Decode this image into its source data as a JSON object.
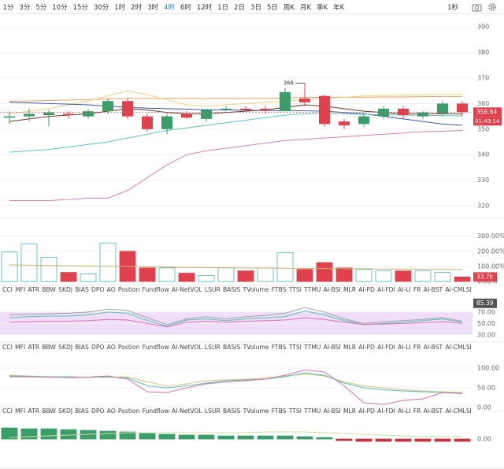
{
  "toolbar": {
    "timeframes": [
      "1分",
      "3分",
      "5分",
      "10分",
      "15分",
      "30分",
      "1时",
      "2时",
      "3时",
      "4时",
      "6时",
      "12时",
      "1日",
      "2日",
      "3日",
      "5日",
      "周K",
      "月K",
      "季K",
      "年K"
    ],
    "active": "4时",
    "right": "1秒"
  },
  "tabs": [
    "CCI",
    "MFI",
    "ATR",
    "BBW",
    "SKDJ",
    "BIAS",
    "DPO",
    "AO",
    "Postion",
    "Fundflow",
    "AI-NetVOL",
    "LSUR",
    "BASIS",
    "TVolume",
    "FTBS",
    "TTSI",
    "TTMU",
    "AI-BSI",
    "MLR",
    "AI-PD",
    "AI-FDI",
    "AI-LI",
    "FR",
    "AI-BST",
    "AI-CMLSI"
  ],
  "chart_data": [
    {
      "type": "candlestick",
      "up_color": "#3a9d6a",
      "down_color": "#e0424d",
      "open": [
        354.5,
        355,
        355.5,
        356,
        355,
        357,
        361,
        355,
        350,
        356,
        354,
        357.5,
        358,
        358,
        357,
        362,
        363,
        353,
        352,
        355,
        358,
        355,
        356,
        360
      ],
      "high": [
        357,
        358,
        357.5,
        357,
        358,
        362,
        362,
        356,
        356,
        357,
        358,
        359,
        359,
        359,
        366,
        368,
        363.5,
        354,
        356,
        359,
        359,
        357,
        361,
        361
      ],
      "low": [
        352,
        353,
        351,
        354,
        354,
        356,
        354,
        349,
        348,
        354,
        353,
        357,
        357,
        356,
        357,
        359,
        351,
        350,
        351,
        354,
        354,
        354,
        355,
        355
      ],
      "close": [
        355,
        356,
        356.5,
        355.5,
        357,
        361,
        355,
        350,
        355,
        354.5,
        357.5,
        358,
        357.5,
        357.5,
        364.5,
        360.5,
        352,
        351.5,
        355,
        358,
        355.5,
        356.5,
        360,
        356.64
      ],
      "high_marker": 368,
      "countdown": "01:49:14",
      "lines": [
        {
          "color": "#e8a06a",
          "values": [
            361,
            361,
            361.2,
            361.4,
            361.6,
            361.8,
            362,
            362,
            362,
            362,
            362,
            362,
            362,
            362,
            362.2,
            362.4,
            362.5,
            362.5,
            362.5,
            362.6,
            362.6,
            362.7,
            362.8,
            362.8
          ]
        },
        {
          "color": "#e8d27a",
          "values": [
            356,
            357,
            358,
            359.5,
            361,
            363,
            365,
            363.5,
            361.5,
            359.5,
            359,
            359.5,
            360,
            360.5,
            361,
            361.5,
            362,
            362.5,
            363,
            363.2,
            363.4,
            363.5,
            363.6,
            363.6
          ]
        },
        {
          "color": "#3d5ba8",
          "values": [
            360.5,
            360.3,
            360,
            359.8,
            359.5,
            359,
            358.5,
            358.2,
            358,
            357.8,
            357.6,
            357.5,
            357.4,
            357.3,
            357.2,
            357.2,
            357,
            356.5,
            356,
            355,
            354,
            353,
            352,
            351.5
          ]
        },
        {
          "color": "#6b3b2a",
          "values": [
            353,
            354,
            355,
            355.5,
            356,
            357,
            358,
            357.5,
            356.5,
            356,
            356,
            356.5,
            357,
            357.5,
            358.5,
            359.5,
            359,
            358,
            357,
            356.5,
            356,
            356,
            356,
            356
          ]
        },
        {
          "color": "#5cc7c0",
          "values": [
            341,
            341.5,
            342,
            343,
            344,
            345,
            346.5,
            348,
            349.5,
            350.5,
            351.5,
            352.5,
            353.5,
            354.5,
            355.5,
            356,
            356.2,
            356,
            355.8,
            355.6,
            355.5,
            355.4,
            355.3,
            355.2
          ]
        },
        {
          "color": "#e27ab0",
          "values": [
            322,
            322,
            322,
            322.5,
            323,
            323,
            326,
            331,
            336,
            340,
            341.5,
            342.5,
            343.5,
            344.5,
            345.5,
            346,
            346.5,
            347,
            347.5,
            348,
            348.5,
            349,
            349.2,
            349.5
          ]
        }
      ],
      "ylim": [
        316,
        395
      ],
      "yticks": [
        320,
        330,
        340,
        350,
        360,
        370,
        380,
        390
      ]
    },
    {
      "type": "bar",
      "fills": [
        "none",
        "none",
        "none",
        "#e0424d",
        "none",
        "none",
        "#e0424d",
        "#e0424d",
        "none",
        "#e0424d",
        "none",
        "none",
        "#e0424d",
        "none",
        "none",
        "#e0424d",
        "#e0424d",
        "#e0424d",
        "none",
        "none",
        "#e0424d",
        "none",
        "none",
        "#e0424d"
      ],
      "outline": "#4fb7b0",
      "values": [
        195,
        250,
        160,
        60,
        50,
        255,
        200,
        90,
        90,
        55,
        40,
        90,
        70,
        90,
        190,
        80,
        125,
        90,
        80,
        70,
        70,
        70,
        60,
        30
      ],
      "line": {
        "color": "#c9b26a",
        "values": [
          110,
          108,
          106,
          104,
          102,
          100,
          99,
          97,
          95,
          93,
          92,
          91,
          90,
          89,
          88,
          87,
          86,
          85,
          84,
          83,
          82,
          81,
          80,
          79
        ]
      },
      "tag_label": "33.7k",
      "tag_color": "#e0424d",
      "ylim": [
        -15,
        350
      ],
      "yticks": [
        {
          "value": 0,
          "label": "0.00%"
        },
        {
          "value": 100,
          "label": "100.00%"
        },
        {
          "value": 200,
          "label": "200.00%"
        },
        {
          "value": 300,
          "label": "300.00%"
        }
      ]
    },
    {
      "type": "line",
      "band": [
        30,
        70
      ],
      "band_color": "#f0ddf7",
      "tag": 85.39,
      "series": [
        {
          "color": "#9aa3a8",
          "values": [
            65,
            66,
            67,
            68,
            70,
            75,
            73,
            60,
            48,
            58,
            62,
            58,
            62,
            64,
            68,
            78,
            70,
            58,
            50,
            53,
            55,
            57,
            60,
            54
          ]
        },
        {
          "color": "#52c2b8",
          "values": [
            60,
            62,
            63,
            63,
            65,
            70,
            68,
            55,
            45,
            56,
            58,
            55,
            58,
            60,
            62,
            72,
            65,
            55,
            48,
            50,
            52,
            55,
            58,
            52
          ]
        },
        {
          "color": "#e070c0",
          "values": [
            52,
            53,
            54,
            54,
            55,
            57,
            56,
            50,
            44,
            52,
            54,
            52,
            54,
            55,
            56,
            60,
            57,
            52,
            48,
            49,
            50,
            51,
            53,
            50
          ]
        }
      ],
      "ylim": [
        20,
        99
      ],
      "yticks": [
        {
          "value": 30,
          "label": "30.00"
        },
        {
          "value": 50,
          "label": "50.00"
        },
        {
          "value": 70,
          "label": "70.00"
        }
      ]
    },
    {
      "type": "line",
      "series": [
        {
          "color": "#d9c27a",
          "values": [
            82,
            80,
            78,
            77,
            76,
            77,
            78,
            65,
            55,
            60,
            68,
            70,
            72,
            75,
            80,
            85,
            80,
            65,
            55,
            50,
            45,
            42,
            40,
            38
          ]
        },
        {
          "color": "#52c2b8",
          "values": [
            80,
            79,
            78,
            78,
            77,
            78,
            75,
            55,
            50,
            55,
            62,
            68,
            70,
            72,
            78,
            88,
            82,
            62,
            50,
            45,
            42,
            40,
            38,
            36
          ]
        },
        {
          "color": "#d873a8",
          "values": [
            78,
            78,
            77,
            76,
            77,
            80,
            72,
            40,
            38,
            50,
            60,
            65,
            68,
            72,
            82,
            95,
            90,
            55,
            12,
            8,
            18,
            22,
            38,
            35
          ]
        }
      ],
      "ylim": [
        -6,
        134
      ],
      "yticks": [
        {
          "value": 0,
          "label": "0.00"
        },
        {
          "value": 50,
          "label": "50.00"
        },
        {
          "value": 100,
          "label": "100.00"
        }
      ]
    },
    {
      "type": "bar",
      "pos_color": "#3a9d6a",
      "neg_color": "#c8343e",
      "outline": "#3a9d6a",
      "values": [
        1.4,
        1.3,
        1.3,
        1.2,
        1.1,
        1.0,
        0.9,
        0.7,
        0.6,
        0.5,
        0.5,
        0.4,
        0.4,
        0.4,
        0.4,
        0.3,
        0.2,
        -0.2,
        -0.3,
        -0.3,
        -0.3,
        -0.3,
        -0.3,
        -0.3
      ],
      "line": {
        "color": "#c9e3a0",
        "values": [
          0.2,
          0.3,
          0.4,
          0.5,
          0.6,
          0.7,
          0.8,
          0.8,
          0.8,
          0.8,
          0.8,
          0.8,
          0.8,
          0.9,
          0.9,
          0.9,
          0.8,
          0.7,
          0.6,
          0.5,
          0.4,
          0.3,
          0.3,
          0.3
        ]
      },
      "ylim": [
        -3.5,
        2.2
      ],
      "yticks": [
        {
          "value": 0,
          "label": "0.00"
        }
      ]
    }
  ]
}
